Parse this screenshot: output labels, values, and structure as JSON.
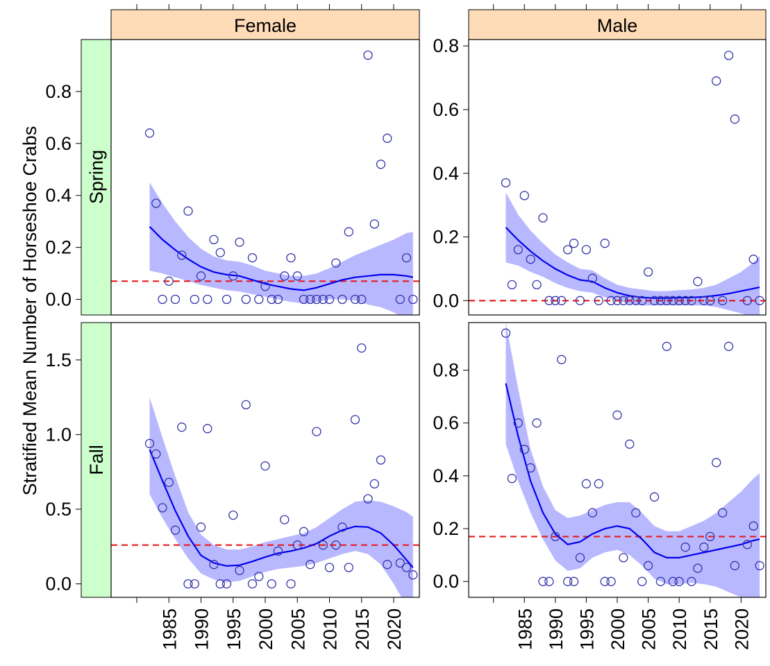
{
  "chart_data": {
    "type": "scatter",
    "ylabel": "Stratified Mean Number of Horseshoe Crabs",
    "xlabel": "",
    "facet_columns": [
      "Female",
      "Male"
    ],
    "facet_rows": [
      "Spring",
      "Fall"
    ],
    "x_ticks": [
      1985,
      1990,
      1995,
      2000,
      2005,
      2010,
      2015,
      2020
    ],
    "xlim": [
      1976,
      2024
    ],
    "colors": {
      "points": "#3333aa",
      "smooth_line": "#0000ee",
      "ribbon": "#b8b8ff",
      "reference_line": "#e8191b",
      "column_strip": "#ffdcb8",
      "row_strip": "#ccffcc"
    },
    "panels": [
      {
        "sex": "Female",
        "season": "Spring",
        "ylim": [
          -0.06,
          1.0
        ],
        "y_ticks": [
          "0.0",
          "0.2",
          "0.4",
          "0.6",
          "0.8"
        ],
        "y_tick_values": [
          0.0,
          0.2,
          0.4,
          0.6,
          0.8
        ],
        "reference": 0.07,
        "points": [
          [
            1982,
            0.64
          ],
          [
            1983,
            0.37
          ],
          [
            1984,
            0.0
          ],
          [
            1985,
            0.07
          ],
          [
            1986,
            0.0
          ],
          [
            1987,
            0.17
          ],
          [
            1988,
            0.34
          ],
          [
            1989,
            0.0
          ],
          [
            1990,
            0.09
          ],
          [
            1991,
            0.0
          ],
          [
            1992,
            0.23
          ],
          [
            1993,
            0.18
          ],
          [
            1994,
            0.0
          ],
          [
            1995,
            0.09
          ],
          [
            1996,
            0.22
          ],
          [
            1997,
            0.0
          ],
          [
            1998,
            0.16
          ],
          [
            1999,
            0.0
          ],
          [
            2000,
            0.05
          ],
          [
            2001,
            0.0
          ],
          [
            2002,
            0.0
          ],
          [
            2003,
            0.09
          ],
          [
            2004,
            0.16
          ],
          [
            2005,
            0.09
          ],
          [
            2006,
            0.0
          ],
          [
            2007,
            0.0
          ],
          [
            2008,
            0.0
          ],
          [
            2009,
            0.0
          ],
          [
            2010,
            0.0
          ],
          [
            2011,
            0.14
          ],
          [
            2012,
            0.0
          ],
          [
            2013,
            0.26
          ],
          [
            2014,
            0.0
          ],
          [
            2015,
            0.0
          ],
          [
            2016,
            0.94
          ],
          [
            2017,
            0.29
          ],
          [
            2018,
            0.52
          ],
          [
            2019,
            0.62
          ],
          [
            2021,
            0.0
          ],
          [
            2022,
            0.16
          ],
          [
            2023,
            0.0
          ]
        ],
        "smooth_x": [
          1982,
          1984,
          1986,
          1988,
          1990,
          1992,
          1994,
          1996,
          1998,
          2000,
          2002,
          2004,
          2006,
          2008,
          2010,
          2012,
          2014,
          2016,
          2018,
          2020,
          2022,
          2023
        ],
        "smooth_y": [
          0.28,
          0.23,
          0.19,
          0.155,
          0.125,
          0.105,
          0.095,
          0.09,
          0.075,
          0.06,
          0.05,
          0.04,
          0.035,
          0.045,
          0.06,
          0.075,
          0.085,
          0.09,
          0.095,
          0.095,
          0.09,
          0.085
        ],
        "band_lower": [
          0.11,
          0.1,
          0.085,
          0.07,
          0.055,
          0.045,
          0.035,
          0.03,
          0.02,
          0.01,
          0.0,
          -0.01,
          -0.015,
          -0.01,
          0.0,
          0.0,
          -0.005,
          -0.02,
          -0.03,
          -0.05,
          -0.08,
          -0.09
        ],
        "band_upper": [
          0.45,
          0.37,
          0.3,
          0.24,
          0.195,
          0.165,
          0.15,
          0.145,
          0.13,
          0.11,
          0.1,
          0.09,
          0.09,
          0.1,
          0.12,
          0.145,
          0.17,
          0.19,
          0.21,
          0.23,
          0.255,
          0.26
        ]
      },
      {
        "sex": "Male",
        "season": "Spring",
        "ylim": [
          -0.045,
          0.82
        ],
        "y_ticks": [
          "0.0",
          "0.2",
          "0.4",
          "0.6",
          "0.8"
        ],
        "y_tick_values": [
          0.0,
          0.2,
          0.4,
          0.6,
          0.8
        ],
        "reference": 0.0,
        "points": [
          [
            1982,
            0.37
          ],
          [
            1983,
            0.05
          ],
          [
            1984,
            0.16
          ],
          [
            1985,
            0.33
          ],
          [
            1986,
            0.13
          ],
          [
            1987,
            0.05
          ],
          [
            1988,
            0.26
          ],
          [
            1989,
            0.0
          ],
          [
            1990,
            0.0
          ],
          [
            1991,
            0.0
          ],
          [
            1992,
            0.16
          ],
          [
            1993,
            0.18
          ],
          [
            1994,
            0.0
          ],
          [
            1995,
            0.16
          ],
          [
            1996,
            0.07
          ],
          [
            1997,
            0.0
          ],
          [
            1998,
            0.18
          ],
          [
            1999,
            0.0
          ],
          [
            2000,
            0.0
          ],
          [
            2001,
            0.0
          ],
          [
            2002,
            0.0
          ],
          [
            2003,
            0.0
          ],
          [
            2004,
            0.0
          ],
          [
            2005,
            0.09
          ],
          [
            2006,
            0.0
          ],
          [
            2007,
            0.0
          ],
          [
            2008,
            0.0
          ],
          [
            2009,
            0.0
          ],
          [
            2010,
            0.0
          ],
          [
            2011,
            0.0
          ],
          [
            2012,
            0.0
          ],
          [
            2013,
            0.06
          ],
          [
            2014,
            0.0
          ],
          [
            2015,
            0.0
          ],
          [
            2016,
            0.69
          ],
          [
            2017,
            0.0
          ],
          [
            2018,
            0.77
          ],
          [
            2019,
            0.57
          ],
          [
            2021,
            0.0
          ],
          [
            2022,
            0.13
          ],
          [
            2023,
            0.0
          ]
        ],
        "smooth_x": [
          1982,
          1984,
          1986,
          1988,
          1990,
          1992,
          1994,
          1996,
          1998,
          2000,
          2002,
          2004,
          2006,
          2008,
          2010,
          2012,
          2014,
          2016,
          2018,
          2020,
          2022,
          2023
        ],
        "smooth_y": [
          0.23,
          0.19,
          0.155,
          0.125,
          0.1,
          0.08,
          0.065,
          0.06,
          0.04,
          0.025,
          0.015,
          0.01,
          0.008,
          0.008,
          0.009,
          0.01,
          0.012,
          0.016,
          0.022,
          0.03,
          0.038,
          0.042
        ],
        "band_lower": [
          0.12,
          0.11,
          0.09,
          0.075,
          0.055,
          0.04,
          0.03,
          0.025,
          0.01,
          0.0,
          -0.01,
          -0.015,
          -0.015,
          -0.015,
          -0.015,
          -0.015,
          -0.015,
          -0.02,
          -0.03,
          -0.04,
          -0.05,
          -0.055
        ],
        "band_upper": [
          0.34,
          0.27,
          0.22,
          0.18,
          0.145,
          0.12,
          0.1,
          0.095,
          0.07,
          0.05,
          0.04,
          0.035,
          0.03,
          0.03,
          0.033,
          0.035,
          0.04,
          0.05,
          0.07,
          0.09,
          0.12,
          0.14
        ]
      },
      {
        "sex": "Female",
        "season": "Fall",
        "ylim": [
          -0.09,
          1.75
        ],
        "y_ticks": [
          "0.0",
          "0.5",
          "1.0",
          "1.5"
        ],
        "y_tick_values": [
          0.0,
          0.5,
          1.0,
          1.5
        ],
        "reference": 0.26,
        "points": [
          [
            1982,
            0.94
          ],
          [
            1983,
            0.87
          ],
          [
            1984,
            0.51
          ],
          [
            1985,
            0.68
          ],
          [
            1986,
            0.36
          ],
          [
            1987,
            1.05
          ],
          [
            1988,
            0.0
          ],
          [
            1989,
            0.0
          ],
          [
            1990,
            0.38
          ],
          [
            1991,
            1.04
          ],
          [
            1992,
            0.13
          ],
          [
            1993,
            0.0
          ],
          [
            1994,
            0.0
          ],
          [
            1995,
            0.46
          ],
          [
            1996,
            0.09
          ],
          [
            1997,
            1.2
          ],
          [
            1998,
            0.0
          ],
          [
            1999,
            0.05
          ],
          [
            2000,
            0.79
          ],
          [
            2001,
            0.0
          ],
          [
            2002,
            0.22
          ],
          [
            2003,
            0.43
          ],
          [
            2004,
            0.0
          ],
          [
            2005,
            0.26
          ],
          [
            2006,
            0.35
          ],
          [
            2007,
            0.13
          ],
          [
            2008,
            1.02
          ],
          [
            2009,
            0.26
          ],
          [
            2010,
            0.11
          ],
          [
            2011,
            0.26
          ],
          [
            2012,
            0.38
          ],
          [
            2013,
            0.11
          ],
          [
            2014,
            1.1
          ],
          [
            2015,
            1.58
          ],
          [
            2016,
            0.57
          ],
          [
            2017,
            0.67
          ],
          [
            2018,
            0.83
          ],
          [
            2019,
            0.13
          ],
          [
            2021,
            0.14
          ],
          [
            2022,
            0.11
          ],
          [
            2023,
            0.06
          ]
        ],
        "smooth_x": [
          1982,
          1984,
          1986,
          1988,
          1990,
          1992,
          1994,
          1996,
          1998,
          2000,
          2002,
          2004,
          2006,
          2008,
          2010,
          2012,
          2014,
          2016,
          2018,
          2020,
          2022,
          2023
        ],
        "smooth_y": [
          0.9,
          0.69,
          0.49,
          0.32,
          0.19,
          0.14,
          0.12,
          0.125,
          0.15,
          0.18,
          0.205,
          0.22,
          0.24,
          0.27,
          0.32,
          0.36,
          0.385,
          0.38,
          0.34,
          0.26,
          0.16,
          0.11
        ],
        "band_lower": [
          0.6,
          0.44,
          0.3,
          0.17,
          0.07,
          0.03,
          0.01,
          0.02,
          0.05,
          0.08,
          0.1,
          0.11,
          0.12,
          0.14,
          0.17,
          0.2,
          0.22,
          0.2,
          0.13,
          0.0,
          -0.15,
          -0.25
        ],
        "band_upper": [
          1.25,
          0.98,
          0.72,
          0.48,
          0.33,
          0.26,
          0.23,
          0.23,
          0.25,
          0.28,
          0.3,
          0.32,
          0.34,
          0.38,
          0.44,
          0.5,
          0.55,
          0.56,
          0.55,
          0.52,
          0.48,
          0.45
        ]
      },
      {
        "sex": "Male",
        "season": "Fall",
        "ylim": [
          -0.06,
          0.98
        ],
        "y_ticks": [
          "0.0",
          "0.2",
          "0.4",
          "0.6",
          "0.8"
        ],
        "y_tick_values": [
          0.0,
          0.2,
          0.4,
          0.6,
          0.8
        ],
        "reference": 0.17,
        "points": [
          [
            1982,
            0.94
          ],
          [
            1983,
            0.39
          ],
          [
            1984,
            0.6
          ],
          [
            1985,
            0.5
          ],
          [
            1986,
            0.43
          ],
          [
            1987,
            0.6
          ],
          [
            1988,
            0.0
          ],
          [
            1989,
            0.0
          ],
          [
            1990,
            0.17
          ],
          [
            1991,
            0.84
          ],
          [
            1992,
            0.0
          ],
          [
            1993,
            0.0
          ],
          [
            1994,
            0.09
          ],
          [
            1995,
            0.37
          ],
          [
            1996,
            0.26
          ],
          [
            1997,
            0.37
          ],
          [
            1998,
            0.0
          ],
          [
            1999,
            0.0
          ],
          [
            2000,
            0.63
          ],
          [
            2001,
            0.09
          ],
          [
            2002,
            0.52
          ],
          [
            2003,
            0.26
          ],
          [
            2004,
            0.0
          ],
          [
            2005,
            0.06
          ],
          [
            2006,
            0.32
          ],
          [
            2007,
            0.0
          ],
          [
            2008,
            0.89
          ],
          [
            2009,
            0.0
          ],
          [
            2010,
            0.0
          ],
          [
            2011,
            0.13
          ],
          [
            2012,
            0.0
          ],
          [
            2013,
            0.05
          ],
          [
            2014,
            0.13
          ],
          [
            2015,
            0.17
          ],
          [
            2016,
            0.45
          ],
          [
            2017,
            0.26
          ],
          [
            2018,
            0.89
          ],
          [
            2019,
            0.06
          ],
          [
            2021,
            0.14
          ],
          [
            2022,
            0.21
          ],
          [
            2023,
            0.06
          ]
        ],
        "smooth_x": [
          1982,
          1984,
          1986,
          1988,
          1990,
          1992,
          1994,
          1996,
          1998,
          2000,
          2002,
          2004,
          2006,
          2008,
          2010,
          2012,
          2014,
          2016,
          2018,
          2020,
          2022,
          2023
        ],
        "smooth_y": [
          0.75,
          0.55,
          0.38,
          0.26,
          0.18,
          0.14,
          0.15,
          0.18,
          0.2,
          0.21,
          0.2,
          0.16,
          0.11,
          0.09,
          0.09,
          0.1,
          0.11,
          0.12,
          0.13,
          0.14,
          0.155,
          0.16
        ],
        "band_lower": [
          0.52,
          0.38,
          0.26,
          0.16,
          0.08,
          0.04,
          0.05,
          0.09,
          0.11,
          0.12,
          0.1,
          0.06,
          0.01,
          -0.01,
          -0.01,
          -0.005,
          -0.01,
          -0.02,
          -0.04,
          -0.06,
          -0.08,
          -0.09
        ],
        "band_upper": [
          0.98,
          0.73,
          0.5,
          0.36,
          0.27,
          0.24,
          0.25,
          0.27,
          0.29,
          0.3,
          0.3,
          0.26,
          0.21,
          0.19,
          0.19,
          0.21,
          0.23,
          0.26,
          0.3,
          0.34,
          0.39,
          0.41
        ]
      }
    ]
  }
}
